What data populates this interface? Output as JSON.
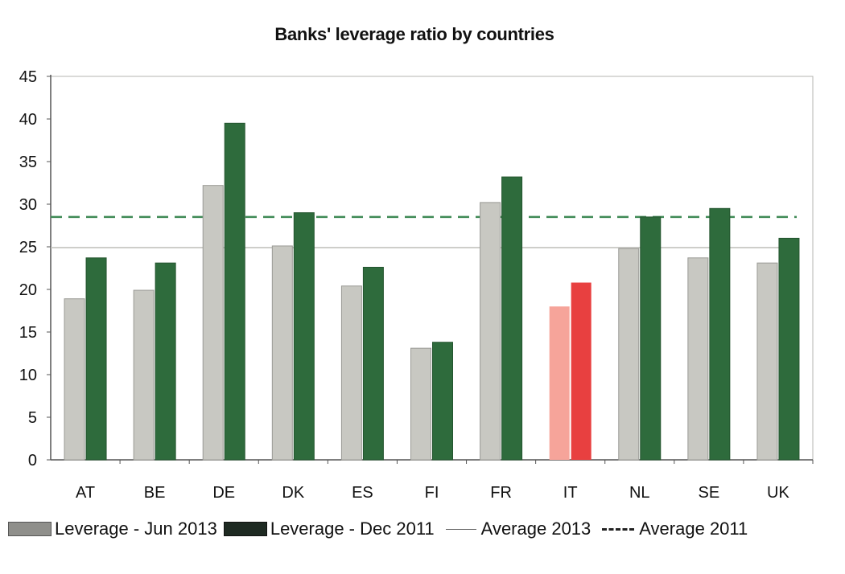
{
  "chart_data": {
    "type": "bar",
    "title": "Banks' leverage ratio by countries",
    "categories": [
      "AT",
      "BE",
      "DE",
      "DK",
      "ES",
      "FI",
      "FR",
      "IT",
      "NL",
      "SE",
      "UK"
    ],
    "series": [
      {
        "name": "Leverage - Jun 2013",
        "values": [
          18.9,
          19.9,
          32.2,
          25.1,
          20.4,
          13.1,
          30.2,
          18.0,
          24.8,
          23.7,
          23.1
        ],
        "color": "#c8c8c2"
      },
      {
        "name": "Leverage - Dec 2011",
        "values": [
          23.7,
          23.1,
          39.5,
          29.0,
          22.6,
          13.8,
          33.2,
          20.8,
          28.5,
          29.5,
          26.0
        ],
        "color": "#2e6b3c"
      }
    ],
    "highlight": {
      "category": "IT",
      "colors": [
        "#f6a49a",
        "#e84040"
      ]
    },
    "reference_lines": [
      {
        "name": "Average 2013",
        "value": 24.9,
        "style": "solid",
        "color": "#bdbdb8"
      },
      {
        "name": "Average 2011",
        "value": 28.5,
        "style": "dashed",
        "color": "#3f8a55"
      }
    ],
    "yticks": [
      0,
      5,
      10,
      15,
      20,
      25,
      30,
      35,
      40,
      45
    ],
    "ylim": [
      0,
      45
    ],
    "grid": false,
    "legend_position": "bottom",
    "xlabel": "",
    "ylabel": ""
  },
  "legend": {
    "items": [
      {
        "label": "Leverage - Jun 2013",
        "kind": "swatch",
        "color": "#c8c8c2"
      },
      {
        "label": "Leverage - Dec 2011",
        "kind": "swatch",
        "color": "#2e6b3c"
      },
      {
        "label": "Average 2013",
        "kind": "solid-line",
        "color": "#999999"
      },
      {
        "label": "Average 2011",
        "kind": "dashed-line",
        "color": "#2e6b3c"
      }
    ]
  }
}
